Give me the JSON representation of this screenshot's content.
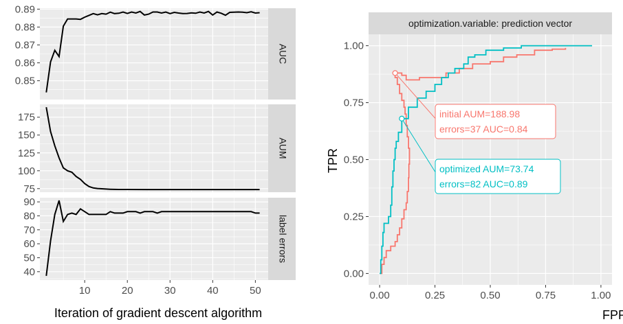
{
  "chart_data": [
    {
      "type": "line",
      "xlabel": "Iteration of gradient descent algorithm",
      "x_ticks": [
        10,
        20,
        30,
        40,
        50
      ],
      "xlim": [
        -0.5,
        53
      ],
      "panels": [
        {
          "strip": "AUC",
          "ylim": [
            0.8395,
            0.8905
          ],
          "y_ticks": [
            0.85,
            0.86,
            0.87,
            0.88,
            0.89
          ],
          "y_tick_labels": [
            "0.85",
            "0.86",
            "0.87",
            "0.88",
            "0.89"
          ],
          "x": [
            1,
            2,
            3,
            4,
            5,
            6,
            7,
            8,
            9,
            10,
            11,
            12,
            13,
            14,
            15,
            16,
            17,
            18,
            19,
            20,
            21,
            22,
            23,
            24,
            25,
            26,
            27,
            28,
            29,
            30,
            31,
            32,
            33,
            34,
            35,
            36,
            37,
            38,
            39,
            40,
            41,
            42,
            43,
            44,
            45,
            46,
            47,
            48,
            49,
            50,
            51
          ],
          "y": [
            0.8435,
            0.8605,
            0.867,
            0.8635,
            0.8805,
            0.8845,
            0.8845,
            0.8845,
            0.8843,
            0.8855,
            0.8865,
            0.8875,
            0.8868,
            0.8875,
            0.8872,
            0.8883,
            0.8875,
            0.8877,
            0.8884,
            0.8876,
            0.8884,
            0.8878,
            0.8887,
            0.8867,
            0.8872,
            0.8884,
            0.8884,
            0.8878,
            0.8884,
            0.8875,
            0.8882,
            0.8878,
            0.8875,
            0.8876,
            0.8879,
            0.8877,
            0.8884,
            0.8878,
            0.8887,
            0.8867,
            0.8884,
            0.8877,
            0.8866,
            0.8882,
            0.8883,
            0.8884,
            0.8883,
            0.888,
            0.8885,
            0.8878,
            0.888
          ]
        },
        {
          "strip": "AUM",
          "ylim": [
            70,
            193
          ],
          "y_ticks": [
            75,
            100,
            125,
            150,
            175
          ],
          "y_tick_labels": [
            "75",
            "100",
            "125",
            "150",
            "175"
          ],
          "x": [
            1,
            2,
            3,
            4,
            5,
            6,
            7,
            8,
            9,
            10,
            11,
            12,
            13,
            14,
            15,
            16,
            17,
            18,
            20,
            25,
            30,
            35,
            40,
            45,
            51
          ],
          "y": [
            188.98,
            155,
            135,
            118,
            104,
            100,
            98,
            92,
            88,
            82,
            78,
            76,
            75.2,
            74.8,
            74.4,
            74.1,
            73.95,
            73.85,
            73.8,
            73.78,
            73.76,
            73.75,
            73.75,
            73.74,
            73.74
          ]
        },
        {
          "strip": "label errors",
          "ylim": [
            34,
            93
          ],
          "y_ticks": [
            40,
            50,
            60,
            70,
            80,
            90
          ],
          "y_tick_labels": [
            "40",
            "50",
            "60",
            "70",
            "80",
            "90"
          ],
          "x": [
            1,
            2,
            3,
            4,
            5,
            6,
            7,
            8,
            9,
            10,
            11,
            12,
            13,
            14,
            15,
            16,
            17,
            18,
            19,
            20,
            21,
            22,
            23,
            24,
            25,
            26,
            27,
            28,
            29,
            30,
            31,
            32,
            33,
            34,
            35,
            36,
            37,
            38,
            39,
            40,
            41,
            42,
            43,
            44,
            45,
            46,
            47,
            48,
            49,
            50,
            51
          ],
          "y": [
            37,
            62,
            81,
            91,
            76,
            81,
            82,
            81,
            85,
            83,
            81,
            81,
            81,
            81,
            81,
            83,
            82,
            82,
            82,
            83,
            83,
            83,
            82,
            83,
            83,
            83,
            82,
            83,
            83,
            83,
            83,
            83,
            83,
            83,
            83,
            83,
            83,
            83,
            83,
            83,
            83,
            83,
            83,
            83,
            83,
            83,
            83,
            83,
            83,
            82,
            82
          ]
        }
      ]
    },
    {
      "type": "line",
      "strip": "optimization.variable: prediction vector",
      "xlabel": "FPR",
      "ylabel": "TPR",
      "xlim": [
        -0.05,
        1.05
      ],
      "ylim": [
        -0.05,
        1.05
      ],
      "x_ticks": [
        0,
        0.25,
        0.5,
        0.75,
        1
      ],
      "x_tick_labels": [
        "0.00",
        "0.25",
        "0.50",
        "0.75",
        "1.00"
      ],
      "y_ticks": [
        0,
        0.25,
        0.5,
        0.75,
        1
      ],
      "y_tick_labels": [
        "0.00",
        "0.25",
        "0.50",
        "0.75",
        "1.00"
      ],
      "series": [
        {
          "key": "initial",
          "color": "#F8766D",
          "points": [
            [
              0,
              0
            ],
            [
              0.01,
              0.04
            ],
            [
              0.02,
              0.07
            ],
            [
              0.03,
              0.1
            ],
            [
              0.05,
              0.12
            ],
            [
              0.07,
              0.14
            ],
            [
              0.08,
              0.17
            ],
            [
              0.09,
              0.2
            ],
            [
              0.1,
              0.24
            ],
            [
              0.11,
              0.28
            ],
            [
              0.12,
              0.31
            ],
            [
              0.125,
              0.36
            ],
            [
              0.13,
              0.42
            ],
            [
              0.132,
              0.48
            ],
            [
              0.135,
              0.55
            ],
            [
              0.13,
              0.6
            ],
            [
              0.125,
              0.65
            ],
            [
              0.12,
              0.7
            ],
            [
              0.115,
              0.73
            ],
            [
              0.11,
              0.76
            ],
            [
              0.1,
              0.79
            ],
            [
              0.09,
              0.83
            ],
            [
              0.08,
              0.86
            ],
            [
              0.07,
              0.88
            ],
            [
              0.1,
              0.87
            ],
            [
              0.12,
              0.85
            ],
            [
              0.18,
              0.86
            ],
            [
              0.26,
              0.86
            ],
            [
              0.3,
              0.88
            ],
            [
              0.36,
              0.9
            ],
            [
              0.42,
              0.92
            ],
            [
              0.5,
              0.93
            ],
            [
              0.56,
              0.95
            ],
            [
              0.62,
              0.96
            ],
            [
              0.7,
              0.98
            ],
            [
              0.78,
              0.985
            ],
            [
              0.84,
              0.99
            ]
          ],
          "marker": [
            0.07,
            0.88
          ]
        },
        {
          "key": "optimized",
          "color": "#00BFC4",
          "points": [
            [
              0,
              0
            ],
            [
              0.005,
              0.06
            ],
            [
              0.01,
              0.12
            ],
            [
              0.015,
              0.18
            ],
            [
              0.02,
              0.22
            ],
            [
              0.04,
              0.25
            ],
            [
              0.05,
              0.3
            ],
            [
              0.055,
              0.38
            ],
            [
              0.06,
              0.45
            ],
            [
              0.065,
              0.5
            ],
            [
              0.07,
              0.55
            ],
            [
              0.075,
              0.58
            ],
            [
              0.085,
              0.62
            ],
            [
              0.1,
              0.68
            ],
            [
              0.13,
              0.73
            ],
            [
              0.17,
              0.77
            ],
            [
              0.21,
              0.8
            ],
            [
              0.25,
              0.83
            ],
            [
              0.28,
              0.86
            ],
            [
              0.31,
              0.88
            ],
            [
              0.34,
              0.9
            ],
            [
              0.38,
              0.92
            ],
            [
              0.4,
              0.95
            ],
            [
              0.43,
              0.96
            ],
            [
              0.48,
              0.98
            ],
            [
              0.52,
              0.98
            ],
            [
              0.56,
              0.99
            ],
            [
              0.64,
              1.0
            ],
            [
              0.7,
              1.0
            ],
            [
              0.8,
              1.0
            ],
            [
              0.96,
              1.0
            ]
          ],
          "marker": [
            0.1,
            0.68
          ]
        }
      ],
      "annotations": [
        {
          "key": "initial",
          "line1": "initial AUM=188.98",
          "line2": "errors=37 AUC=0.84",
          "color": "#F8766D"
        },
        {
          "key": "optimized",
          "line1": "optimized AUM=73.74",
          "line2": "errors=82 AUC=0.89",
          "color": "#00BFC4"
        }
      ]
    }
  ]
}
